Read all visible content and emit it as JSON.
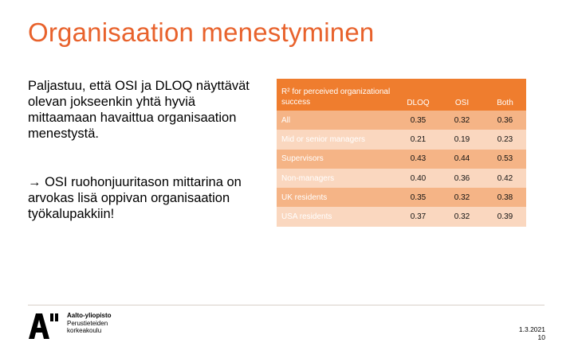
{
  "slide": {
    "title": "Organisaation menestyminen",
    "paragraph1": "Paljastuu, että OSI ja DLOQ näyttävät olevan jokseenkin yhtä hyviä mittaamaan havaittua organisaation menestystä.",
    "paragraph2": " OSI ruohonjuuritason mittarina on arvokas lisä oppivan organisaation työkalupakkiin!",
    "arrow": "→"
  },
  "table": {
    "header": {
      "label": "R² for perceived organizational success",
      "columns": [
        "DLOQ",
        "OSI",
        "Both"
      ]
    },
    "rows": [
      {
        "label": "All",
        "values": [
          "0.35",
          "0.32",
          "0.36"
        ]
      },
      {
        "label": "Mid or senior managers",
        "values": [
          "0.21",
          "0.19",
          "0.23"
        ]
      },
      {
        "label": "Supervisors",
        "values": [
          "0.43",
          "0.44",
          "0.53"
        ]
      },
      {
        "label": "Non-managers",
        "values": [
          "0.40",
          "0.36",
          "0.42"
        ]
      },
      {
        "label": "UK residents",
        "values": [
          "0.35",
          "0.32",
          "0.38"
        ]
      },
      {
        "label": "USA residents",
        "values": [
          "0.37",
          "0.32",
          "0.39"
        ]
      }
    ]
  },
  "footer": {
    "logo_line1": "Aalto-yliopisto",
    "logo_line2": "Perustieteiden",
    "logo_line3": "korkeakoulu",
    "date": "1.3.2021",
    "page": "10"
  },
  "colors": {
    "title": "#e8622c",
    "header_bg": "#ef7d2e",
    "row_dark": "#f5b486",
    "row_light": "#fad7bf"
  }
}
